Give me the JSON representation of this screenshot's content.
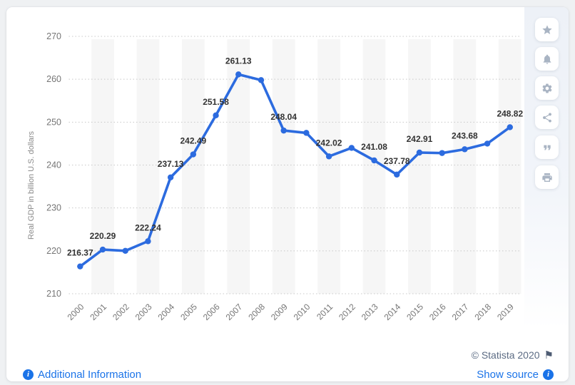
{
  "chart_data": {
    "type": "line",
    "x": [
      2000,
      2001,
      2002,
      2003,
      2004,
      2005,
      2006,
      2007,
      2008,
      2009,
      2010,
      2011,
      2012,
      2013,
      2014,
      2015,
      2016,
      2017,
      2018,
      2019
    ],
    "values": [
      216.37,
      220.29,
      220.0,
      222.24,
      237.13,
      242.49,
      251.58,
      261.13,
      259.8,
      248.04,
      247.5,
      242.02,
      244.0,
      241.08,
      237.78,
      242.91,
      242.8,
      243.68,
      245.0,
      248.82
    ],
    "point_labels": [
      "216.37",
      "220.29",
      "",
      "222.24",
      "237.13",
      "242.49",
      "251.58",
      "261.13",
      "",
      "248.04",
      "",
      "242.02",
      "",
      "241.08",
      "237.78",
      "242.91",
      "",
      "243.68",
      "",
      "248.82"
    ],
    "title": "",
    "xlabel": "",
    "ylabel": "Real GDP in billion U.S. dollars",
    "yticks": [
      210,
      220,
      230,
      240,
      250,
      260,
      270
    ],
    "ylim": [
      210,
      276
    ],
    "grid": "horizontal-dotted",
    "legend": "none",
    "line_color": "#2c6bdf",
    "stripe_color": "#f6f6f6",
    "grid_color": "#c8c8c8",
    "tick_color": "#767676",
    "label_color": "#333333"
  },
  "toolbar": {
    "items": [
      {
        "name": "favorite",
        "icon": "star-icon"
      },
      {
        "name": "alerts",
        "icon": "bell-icon"
      },
      {
        "name": "settings",
        "icon": "gear-icon"
      },
      {
        "name": "share",
        "icon": "share-icon"
      },
      {
        "name": "cite",
        "icon": "quote-icon"
      },
      {
        "name": "print",
        "icon": "print-icon"
      }
    ]
  },
  "footer": {
    "additional_information": "Additional Information",
    "copyright": "© Statista 2020",
    "show_source": "Show source",
    "info_glyph": "i",
    "flag_glyph": "⚑"
  },
  "colors": {
    "accent_blue": "#1a73e8",
    "chart_line": "#2c6bdf",
    "muted_text": "#5c6c84",
    "page_background": "#eff1f3"
  }
}
